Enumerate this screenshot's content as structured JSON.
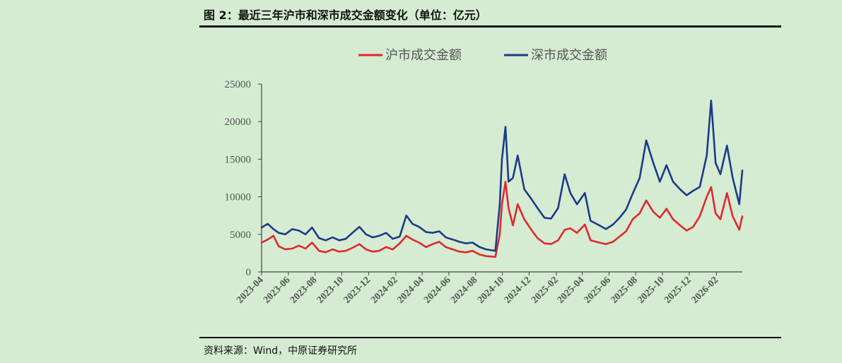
{
  "header": {
    "title": "图 2：最近三年沪市和深市成交金额变化（单位：亿元）"
  },
  "footer": {
    "source": "资料来源：Wind，中原证券研究所"
  },
  "colors": {
    "sh": "#e0282e",
    "sz": "#1d3a8a",
    "axis": "#444444"
  },
  "chart_data": {
    "type": "line",
    "title": "",
    "xlabel": "",
    "ylabel": "",
    "ylim": [
      0,
      25000
    ],
    "yticks": [
      0,
      5000,
      10000,
      15000,
      20000,
      25000
    ],
    "xlim": [
      "2023-04",
      "2026-04"
    ],
    "xticks": [
      "2023-04",
      "2023-06",
      "2023-08",
      "2023-10",
      "2023-12",
      "2024-02",
      "2024-04",
      "2024-06",
      "2024-08",
      "2024-10",
      "2024-12",
      "2025-02",
      "2025-04",
      "2025-06",
      "2025-08",
      "2025-10",
      "2025-12",
      "2026-02"
    ],
    "legend_position": "top",
    "grid": false,
    "series": [
      {
        "name": "沪市成交金额",
        "color": "#e0282e",
        "points": [
          [
            "2023-04-01",
            3900
          ],
          [
            "2023-04-15",
            4300
          ],
          [
            "2023-04-28",
            4800
          ],
          [
            "2023-05-10",
            3400
          ],
          [
            "2023-05-25",
            3000
          ],
          [
            "2023-06-10",
            3100
          ],
          [
            "2023-06-25",
            3500
          ],
          [
            "2023-07-10",
            3100
          ],
          [
            "2023-07-25",
            3900
          ],
          [
            "2023-08-10",
            2800
          ],
          [
            "2023-08-25",
            2600
          ],
          [
            "2023-09-10",
            3000
          ],
          [
            "2023-09-25",
            2700
          ],
          [
            "2023-10-10",
            2800
          ],
          [
            "2023-10-25",
            3200
          ],
          [
            "2023-11-10",
            3700
          ],
          [
            "2023-11-25",
            3000
          ],
          [
            "2023-12-10",
            2700
          ],
          [
            "2023-12-25",
            2800
          ],
          [
            "2024-01-10",
            3300
          ],
          [
            "2024-01-25",
            3000
          ],
          [
            "2024-02-10",
            3800
          ],
          [
            "2024-02-25",
            4800
          ],
          [
            "2024-03-10",
            4300
          ],
          [
            "2024-03-25",
            3900
          ],
          [
            "2024-04-10",
            3300
          ],
          [
            "2024-04-25",
            3700
          ],
          [
            "2024-05-10",
            4000
          ],
          [
            "2024-05-25",
            3300
          ],
          [
            "2024-06-10",
            3000
          ],
          [
            "2024-06-25",
            2700
          ],
          [
            "2024-07-10",
            2600
          ],
          [
            "2024-07-25",
            2800
          ],
          [
            "2024-08-10",
            2300
          ],
          [
            "2024-08-25",
            2100
          ],
          [
            "2024-09-15",
            2000
          ],
          [
            "2024-09-25",
            5000
          ],
          [
            "2024-09-30",
            9000
          ],
          [
            "2024-10-08",
            12000
          ],
          [
            "2024-10-15",
            8500
          ],
          [
            "2024-10-25",
            6200
          ],
          [
            "2024-11-05",
            9000
          ],
          [
            "2024-11-20",
            7000
          ],
          [
            "2024-12-05",
            5700
          ],
          [
            "2024-12-20",
            4500
          ],
          [
            "2025-01-05",
            3800
          ],
          [
            "2025-01-20",
            3700
          ],
          [
            "2025-02-05",
            4200
          ],
          [
            "2025-02-20",
            5600
          ],
          [
            "2025-03-05",
            5800
          ],
          [
            "2025-03-20",
            5200
          ],
          [
            "2025-04-07",
            6300
          ],
          [
            "2025-04-20",
            4200
          ],
          [
            "2025-05-10",
            3900
          ],
          [
            "2025-05-25",
            3700
          ],
          [
            "2025-06-10",
            4000
          ],
          [
            "2025-06-25",
            4700
          ],
          [
            "2025-07-10",
            5400
          ],
          [
            "2025-07-25",
            7000
          ],
          [
            "2025-08-10",
            7800
          ],
          [
            "2025-08-25",
            9500
          ],
          [
            "2025-09-10",
            8000
          ],
          [
            "2025-09-25",
            7200
          ],
          [
            "2025-10-10",
            8400
          ],
          [
            "2025-10-25",
            7000
          ],
          [
            "2025-11-10",
            6200
          ],
          [
            "2025-11-25",
            5500
          ],
          [
            "2025-12-10",
            6000
          ],
          [
            "2025-12-25",
            7400
          ],
          [
            "2026-01-10",
            10000
          ],
          [
            "2026-01-20",
            11300
          ],
          [
            "2026-01-30",
            7800
          ],
          [
            "2026-02-10",
            7000
          ],
          [
            "2026-02-25",
            10500
          ],
          [
            "2026-03-10",
            7400
          ],
          [
            "2026-03-25",
            5600
          ],
          [
            "2026-04-01",
            7400
          ]
        ]
      },
      {
        "name": "深市成交金额",
        "color": "#1d3a8a",
        "points": [
          [
            "2023-04-01",
            5900
          ],
          [
            "2023-04-15",
            6400
          ],
          [
            "2023-04-28",
            5700
          ],
          [
            "2023-05-10",
            5200
          ],
          [
            "2023-05-25",
            5000
          ],
          [
            "2023-06-10",
            5700
          ],
          [
            "2023-06-25",
            5500
          ],
          [
            "2023-07-10",
            5000
          ],
          [
            "2023-07-25",
            5900
          ],
          [
            "2023-08-10",
            4500
          ],
          [
            "2023-08-25",
            4200
          ],
          [
            "2023-09-10",
            4600
          ],
          [
            "2023-09-25",
            4200
          ],
          [
            "2023-10-10",
            4400
          ],
          [
            "2023-10-25",
            5200
          ],
          [
            "2023-11-10",
            6000
          ],
          [
            "2023-11-25",
            5000
          ],
          [
            "2023-12-10",
            4600
          ],
          [
            "2023-12-25",
            4800
          ],
          [
            "2024-01-10",
            5200
          ],
          [
            "2024-01-25",
            4400
          ],
          [
            "2024-02-10",
            4700
          ],
          [
            "2024-02-25",
            7500
          ],
          [
            "2024-03-10",
            6400
          ],
          [
            "2024-03-25",
            6000
          ],
          [
            "2024-04-10",
            5300
          ],
          [
            "2024-04-25",
            5200
          ],
          [
            "2024-05-10",
            5400
          ],
          [
            "2024-05-25",
            4600
          ],
          [
            "2024-06-10",
            4300
          ],
          [
            "2024-06-25",
            4000
          ],
          [
            "2024-07-10",
            3800
          ],
          [
            "2024-07-25",
            3900
          ],
          [
            "2024-08-10",
            3300
          ],
          [
            "2024-08-25",
            3000
          ],
          [
            "2024-09-15",
            2800
          ],
          [
            "2024-09-25",
            9000
          ],
          [
            "2024-09-30",
            15000
          ],
          [
            "2024-10-08",
            19300
          ],
          [
            "2024-10-15",
            12000
          ],
          [
            "2024-10-25",
            12500
          ],
          [
            "2024-11-05",
            15500
          ],
          [
            "2024-11-20",
            11000
          ],
          [
            "2024-12-05",
            9800
          ],
          [
            "2024-12-20",
            8500
          ],
          [
            "2025-01-05",
            7200
          ],
          [
            "2025-01-20",
            7100
          ],
          [
            "2025-02-05",
            8500
          ],
          [
            "2025-02-20",
            13000
          ],
          [
            "2025-03-05",
            10500
          ],
          [
            "2025-03-20",
            9000
          ],
          [
            "2025-04-07",
            10500
          ],
          [
            "2025-04-20",
            6800
          ],
          [
            "2025-05-10",
            6200
          ],
          [
            "2025-05-25",
            5700
          ],
          [
            "2025-06-10",
            6300
          ],
          [
            "2025-06-25",
            7200
          ],
          [
            "2025-07-10",
            8300
          ],
          [
            "2025-07-25",
            10400
          ],
          [
            "2025-08-10",
            12500
          ],
          [
            "2025-08-25",
            17500
          ],
          [
            "2025-09-10",
            14500
          ],
          [
            "2025-09-25",
            12000
          ],
          [
            "2025-10-10",
            14200
          ],
          [
            "2025-10-25",
            12000
          ],
          [
            "2025-11-10",
            11000
          ],
          [
            "2025-11-25",
            10200
          ],
          [
            "2025-12-10",
            10800
          ],
          [
            "2025-12-25",
            11300
          ],
          [
            "2026-01-10",
            15500
          ],
          [
            "2026-01-20",
            22800
          ],
          [
            "2026-01-30",
            14500
          ],
          [
            "2026-02-10",
            13000
          ],
          [
            "2026-02-25",
            16800
          ],
          [
            "2026-03-10",
            12500
          ],
          [
            "2026-03-25",
            9000
          ],
          [
            "2026-04-01",
            13500
          ]
        ]
      }
    ]
  }
}
